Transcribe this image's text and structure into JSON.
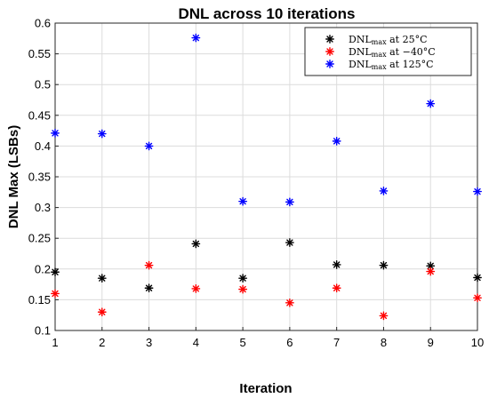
{
  "chart_data": {
    "type": "scatter",
    "title": "DNL across 10 iterations",
    "xlabel": "Iteration",
    "ylabel": "DNL Max (LSBs)",
    "xlim": [
      1,
      10
    ],
    "ylim": [
      0.1,
      0.6
    ],
    "xticks": [
      1,
      2,
      3,
      4,
      5,
      6,
      7,
      8,
      9,
      10
    ],
    "yticks": [
      0.1,
      0.15,
      0.2,
      0.25,
      0.3,
      0.35,
      0.4,
      0.45,
      0.5,
      0.55,
      0.6
    ],
    "ytick_labels": [
      "0.1",
      "0.15",
      "0.2",
      "0.25",
      "0.3",
      "0.35",
      "0.4",
      "0.45",
      "0.5",
      "0.55",
      "0.6"
    ],
    "grid": true,
    "legend_position": "top-right",
    "marker": "asterisk",
    "x": [
      1,
      2,
      3,
      4,
      5,
      6,
      7,
      8,
      9,
      10
    ],
    "series": [
      {
        "name_main": "DNL",
        "name_sub": "max",
        "name_rest": " at 25°C",
        "color": "#000000",
        "values": [
          0.195,
          0.185,
          0.169,
          0.241,
          0.185,
          0.243,
          0.207,
          0.206,
          0.205,
          0.186
        ]
      },
      {
        "name_main": "DNL",
        "name_sub": "max",
        "name_rest": " at −40°C",
        "color": "#ff0000",
        "values": [
          0.16,
          0.13,
          0.206,
          0.168,
          0.167,
          0.145,
          0.169,
          0.124,
          0.196,
          0.153
        ]
      },
      {
        "name_main": "DNL",
        "name_sub": "max",
        "name_rest": " at 125°C",
        "color": "#0000ff",
        "values": [
          0.421,
          0.42,
          0.4,
          0.576,
          0.31,
          0.309,
          0.408,
          0.327,
          0.469,
          0.326
        ]
      }
    ]
  }
}
